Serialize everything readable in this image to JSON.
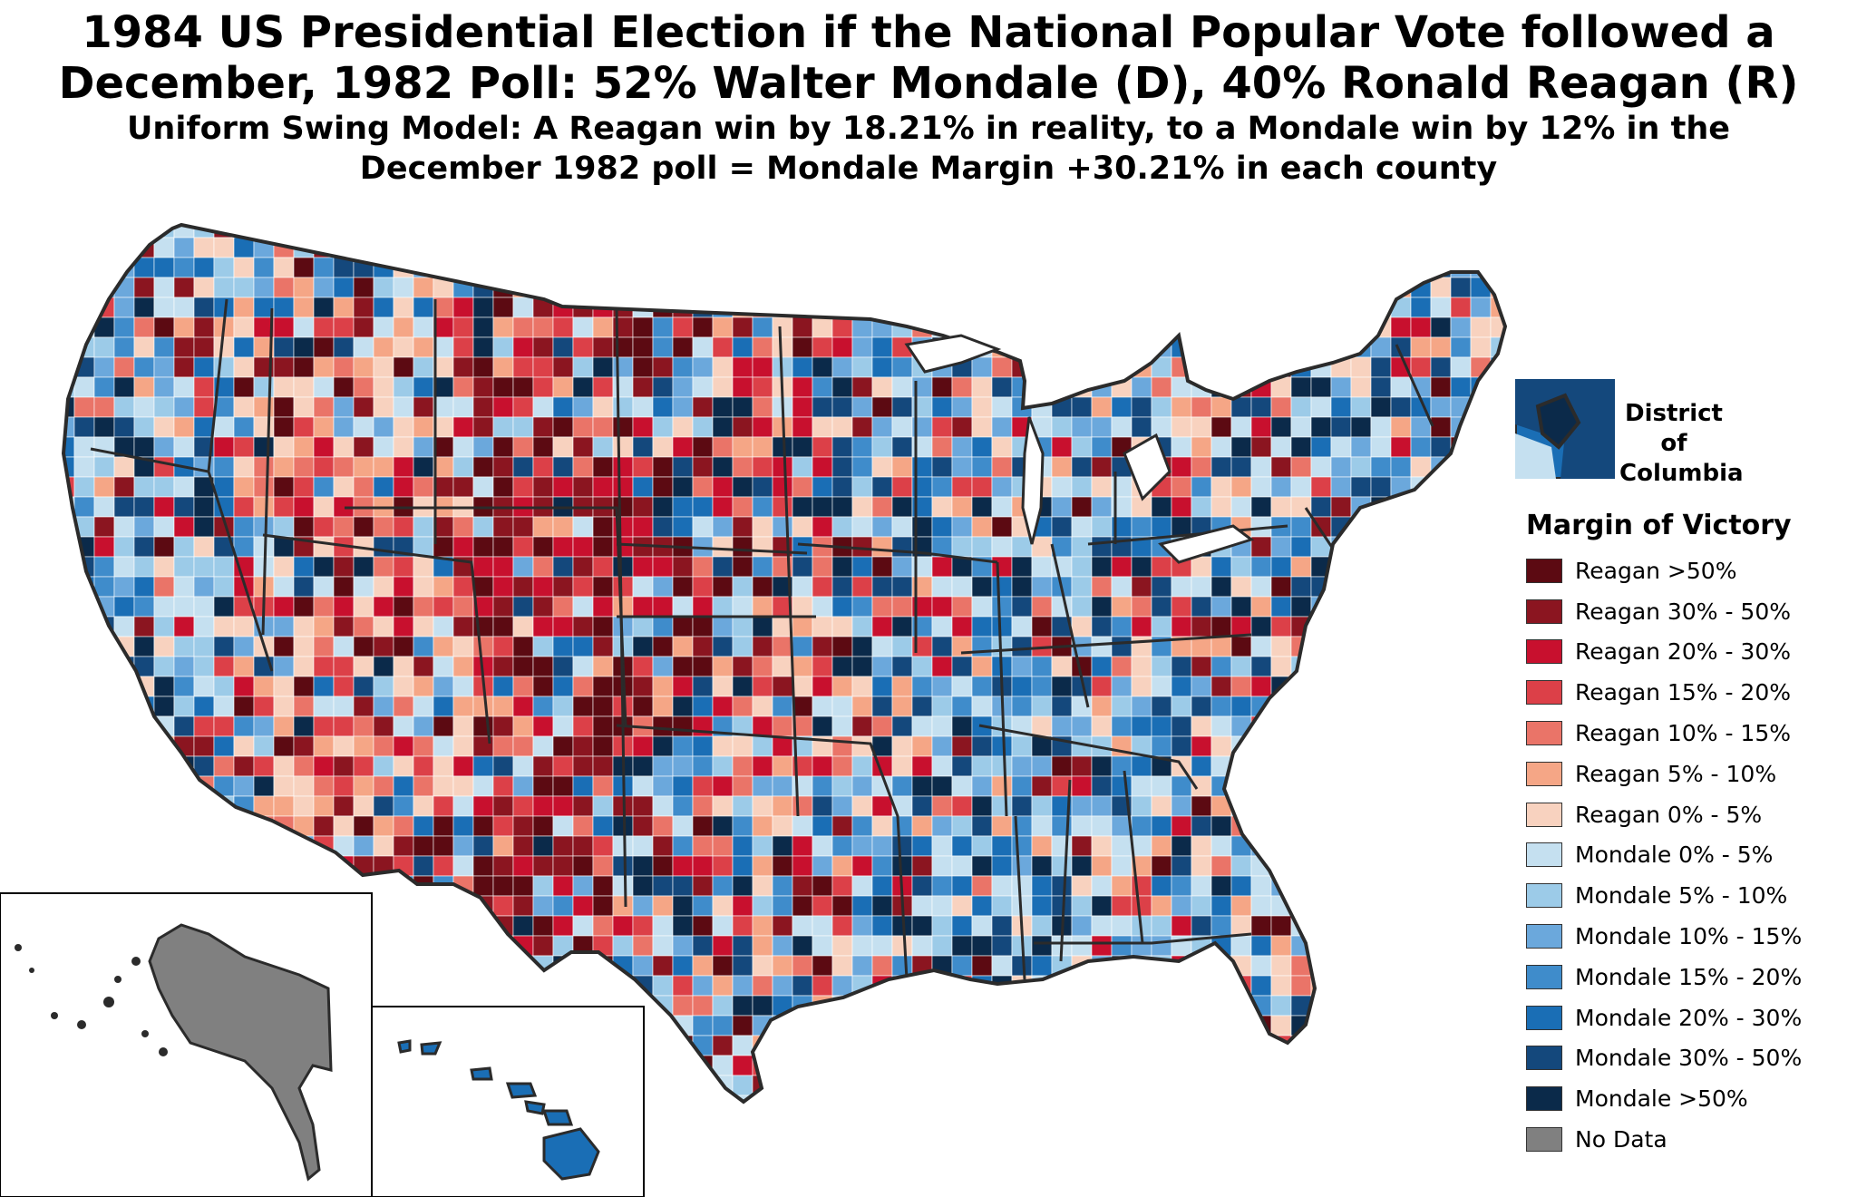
{
  "title": {
    "line1": "1984 US Presidential Election if the National Popular Vote followed a",
    "line2": "December, 1982 Poll: 52% Walter Mondale (D), 40% Ronald Reagan (R)",
    "line3": "Uniform Swing Model: A Reagan win by 18.21% in reality, to a Mondale win by 12% in the",
    "line4": "December 1982 poll = Mondale Margin +30.21% in each county"
  },
  "dc_inset": {
    "label": "District of Columbia"
  },
  "legend": {
    "title": "Margin of Victory",
    "items": [
      {
        "label": "Reagan >50%",
        "color": "#5c0a12"
      },
      {
        "label": "Reagan 30% - 50%",
        "color": "#8b1520"
      },
      {
        "label": "Reagan 20% - 30%",
        "color": "#c8102e"
      },
      {
        "label": "Reagan 15% - 20%",
        "color": "#dc4048"
      },
      {
        "label": "Reagan 10% - 15%",
        "color": "#ea7468"
      },
      {
        "label": "Reagan 5% - 10%",
        "color": "#f5a686"
      },
      {
        "label": "Reagan 0% - 5%",
        "color": "#f8d2bf"
      },
      {
        "label": "Mondale 0% - 5%",
        "color": "#c5e0f0"
      },
      {
        "label": "Mondale 5% - 10%",
        "color": "#9ccbe8"
      },
      {
        "label": "Mondale 10% - 15%",
        "color": "#6ba8dc"
      },
      {
        "label": "Mondale 15% - 20%",
        "color": "#3f8ccb"
      },
      {
        "label": "Mondale 20% - 30%",
        "color": "#1a6eb5"
      },
      {
        "label": "Mondale 30% - 50%",
        "color": "#14487c"
      },
      {
        "label": "Mondale >50%",
        "color": "#0b2a4a"
      },
      {
        "label": "No Data",
        "color": "#808080"
      }
    ]
  },
  "colors": {
    "state_border": "#2b2b2b",
    "alaska": "#808080",
    "hawaii": "#1a6eb5"
  }
}
